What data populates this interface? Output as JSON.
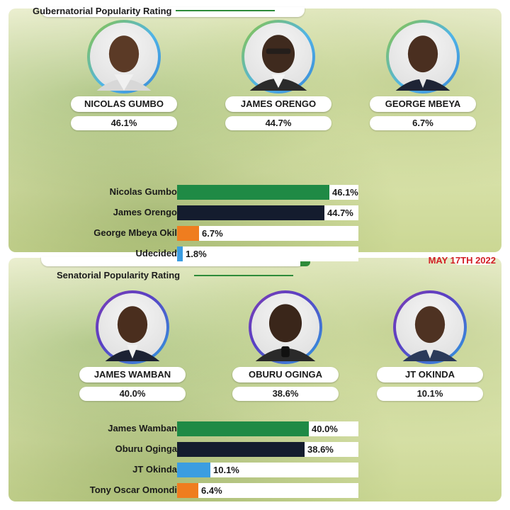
{
  "colors": {
    "green": "#1f8a45",
    "navy": "#141c2e",
    "orange": "#ef7d1f",
    "blue": "#3b9de1"
  },
  "gubernatorial": {
    "title": "Gubernatorial Popularity Rating",
    "candidates": [
      {
        "name": "NICOLAS GUMBO",
        "pct": "46.1%"
      },
      {
        "name": "JAMES ORENGO",
        "pct": "44.7%"
      },
      {
        "name": "GEORGE MBEYA",
        "pct": "6.7%"
      }
    ]
  },
  "senatorial": {
    "title": "Senatorial Popularity Rating",
    "date": "MAY 17TH 2022",
    "candidates": [
      {
        "name": "JAMES WAMBAN",
        "pct": "40.0%"
      },
      {
        "name": "OBURU OGINGA",
        "pct": "38.6%"
      },
      {
        "name": "JT OKINDA",
        "pct": "10.1%"
      }
    ]
  },
  "chart_data": [
    {
      "type": "bar",
      "title": "Gubernatorial Popularity Rating",
      "categories": [
        "Nicolas Gumbo",
        "James Orengo",
        "George Mbeya Okil",
        "Udecided"
      ],
      "values": [
        46.1,
        44.7,
        6.7,
        1.8
      ],
      "value_labels": [
        "46.1%",
        "44.7%",
        "6.7%",
        "1.8%"
      ],
      "colors": [
        "#1f8a45",
        "#141c2e",
        "#ef7d1f",
        "#3b9de1"
      ],
      "xlim": [
        0,
        55
      ],
      "orientation": "horizontal"
    },
    {
      "type": "bar",
      "title": "Senatorial Popularity Rating",
      "categories": [
        "James Wamban",
        "Oburu Oginga",
        "JT Okinda",
        "Tony Oscar Omondi"
      ],
      "values": [
        40.0,
        38.6,
        10.1,
        6.4
      ],
      "value_labels": [
        "40.0%",
        "38.6%",
        "10.1%",
        "6.4%"
      ],
      "colors": [
        "#1f8a45",
        "#141c2e",
        "#3b9de1",
        "#ef7d1f"
      ],
      "xlim": [
        0,
        55
      ],
      "orientation": "horizontal"
    }
  ]
}
